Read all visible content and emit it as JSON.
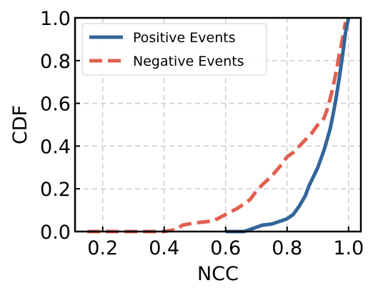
{
  "chart_data": {
    "type": "line",
    "title": "",
    "xlabel": "NCC",
    "ylabel": "CDF",
    "xlim": [
      0.11,
      1.04
    ],
    "ylim": [
      0.0,
      1.0
    ],
    "x_ticks": [
      "0.2",
      "0.4",
      "0.6",
      "0.8",
      "1.0"
    ],
    "y_ticks": [
      "0.0",
      "0.2",
      "0.4",
      "0.6",
      "0.8",
      "1.0"
    ],
    "grid": true,
    "legend_position": "top-left",
    "series": [
      {
        "name": "Positive Events",
        "color": "#336699",
        "line_style": "solid",
        "x": [
          0.6,
          0.66,
          0.68,
          0.7,
          0.72,
          0.75,
          0.78,
          0.8,
          0.82,
          0.84,
          0.86,
          0.87,
          0.88,
          0.89,
          0.9,
          0.91,
          0.92,
          0.93,
          0.94,
          0.95,
          0.96,
          0.97,
          0.98,
          0.99,
          1.0
        ],
        "y": [
          0.0,
          0.0,
          0.01,
          0.02,
          0.03,
          0.035,
          0.05,
          0.06,
          0.08,
          0.12,
          0.17,
          0.21,
          0.24,
          0.27,
          0.3,
          0.34,
          0.38,
          0.43,
          0.48,
          0.55,
          0.63,
          0.72,
          0.82,
          0.93,
          1.0
        ]
      },
      {
        "name": "Negative Events",
        "color": "#e0604f",
        "line_style": "dashed",
        "x": [
          0.15,
          0.2,
          0.3,
          0.4,
          0.44,
          0.46,
          0.5,
          0.56,
          0.58,
          0.6,
          0.64,
          0.68,
          0.7,
          0.72,
          0.75,
          0.78,
          0.8,
          0.82,
          0.84,
          0.86,
          0.88,
          0.9,
          0.92,
          0.93,
          0.94,
          0.95,
          0.96,
          0.97,
          0.98,
          0.99
        ],
        "y": [
          0.0,
          0.0,
          0.0,
          0.0,
          0.01,
          0.03,
          0.04,
          0.05,
          0.065,
          0.08,
          0.11,
          0.15,
          0.19,
          0.22,
          0.26,
          0.31,
          0.35,
          0.37,
          0.4,
          0.43,
          0.46,
          0.5,
          0.53,
          0.57,
          0.62,
          0.68,
          0.75,
          0.83,
          0.9,
          0.98
        ]
      }
    ]
  }
}
